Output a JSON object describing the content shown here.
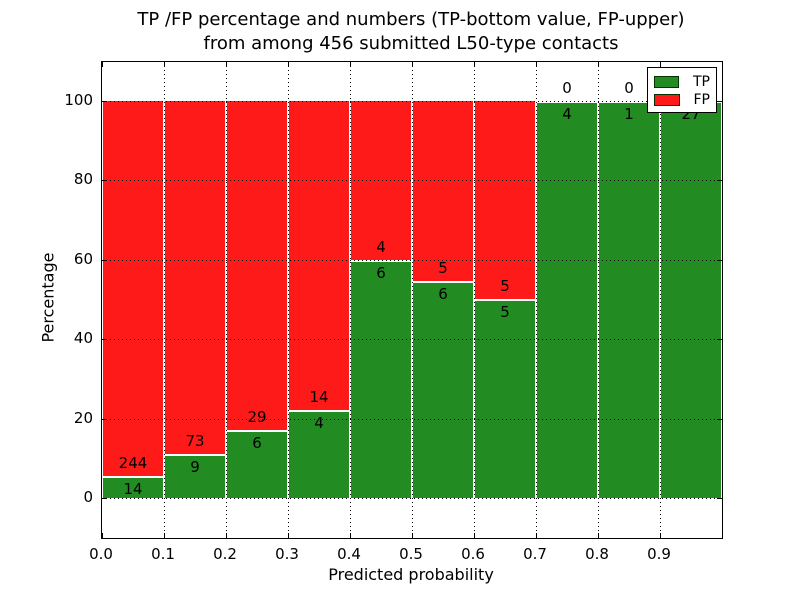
{
  "chart_data": {
    "type": "bar",
    "stacked": true,
    "normalized": "each bin scaled to 100%",
    "title_lines": [
      "TP /FP percentage and numbers (TP-bottom value, FP-upper)",
      "from among 456 submitted L50-type contacts"
    ],
    "xlabel": "Predicted probability",
    "ylabel": "Percentage",
    "total_contacts": 456,
    "bin_edges": [
      0.0,
      0.1,
      0.2,
      0.3,
      0.4,
      0.5,
      0.6,
      0.7,
      0.8,
      0.9,
      1.0
    ],
    "categories": [
      "0.0-0.1",
      "0.1-0.2",
      "0.2-0.3",
      "0.3-0.4",
      "0.4-0.5",
      "0.5-0.6",
      "0.6-0.7",
      "0.7-0.8",
      "0.8-0.9",
      "0.9-1.0"
    ],
    "series": [
      {
        "name": "TP",
        "color": "#228b22",
        "values": [
          14,
          9,
          6,
          4,
          6,
          6,
          5,
          4,
          1,
          27
        ]
      },
      {
        "name": "FP",
        "color": "#ff1a1a",
        "values": [
          244,
          73,
          29,
          14,
          4,
          5,
          5,
          0,
          0,
          0
        ]
      }
    ],
    "tp_percent_per_bin": [
      5.4,
      11.0,
      17.1,
      22.2,
      60.0,
      54.5,
      50.0,
      100.0,
      100.0,
      100.0
    ],
    "xticks": [
      "0.0",
      "0.1",
      "0.2",
      "0.3",
      "0.4",
      "0.5",
      "0.6",
      "0.7",
      "0.8",
      "0.9"
    ],
    "yticks": [
      "0",
      "20",
      "40",
      "60",
      "80",
      "100"
    ],
    "xlim": [
      0.0,
      1.0
    ],
    "ylim": [
      -10,
      110
    ],
    "grid": "dotted black, both axes",
    "bar_edge_color": "#ffffff",
    "legend_position": "upper right"
  }
}
